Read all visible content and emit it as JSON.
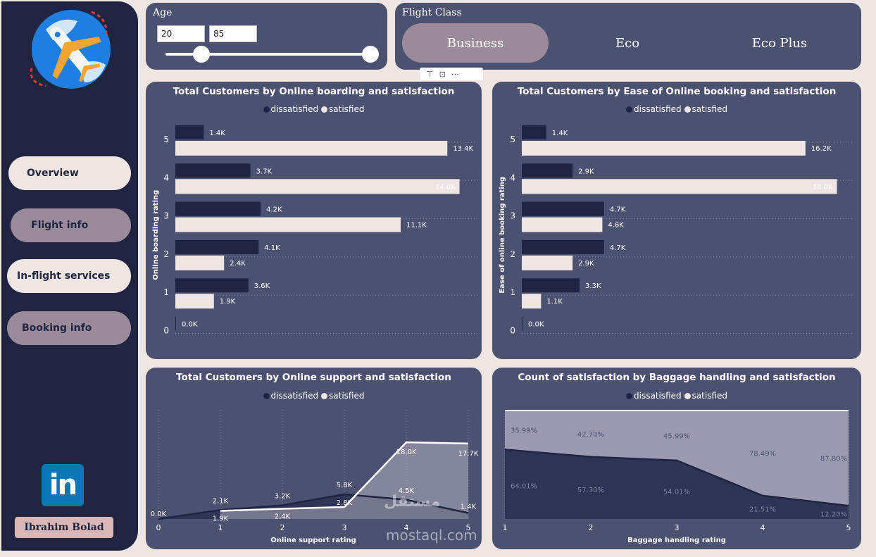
{
  "sidebar": {
    "nav": [
      {
        "label": "Overview",
        "style": "light"
      },
      {
        "label": "Flight info",
        "style": "dark"
      },
      {
        "label": "In-flight services",
        "style": "light"
      },
      {
        "label": "Booking info",
        "style": "dark"
      }
    ],
    "linkedin_label": "in",
    "author": "Ibrahim Bolad"
  },
  "age_slicer": {
    "title": "Age",
    "min": "20",
    "max": "85"
  },
  "flight_class": {
    "title": "Flight Class",
    "options": [
      "Business",
      "Eco",
      "Eco Plus"
    ],
    "selected": "Business"
  },
  "watermark": {
    "arabic": "مستقل",
    "latin": "mostaql.com"
  },
  "colors": {
    "dissatisfied": "#1f2540",
    "satisfied": "#efe6e3",
    "card": "#4b5270"
  },
  "chart_data": [
    {
      "type": "bar",
      "title": "Total Customers by Online boarding and satisfaction",
      "ylabel": "Online boarding rating",
      "categories": [
        "5",
        "4",
        "3",
        "2",
        "1",
        "0"
      ],
      "legend": [
        "dissatisfied",
        "satisfied"
      ],
      "series": [
        {
          "name": "dissatisfied",
          "values": [
            1.4,
            3.7,
            4.2,
            4.1,
            3.6,
            0.0
          ],
          "labels": [
            "1.4K",
            "3.7K",
            "4.2K",
            "4.1K",
            "3.6K",
            "0.0K"
          ]
        },
        {
          "name": "satisfied",
          "values": [
            13.4,
            14.0,
            11.1,
            2.4,
            1.9,
            null
          ],
          "labels": [
            "13.4K",
            "14.0K",
            "11.1K",
            "2.4K",
            "1.9K",
            ""
          ]
        }
      ],
      "xmax": 14.5
    },
    {
      "type": "bar",
      "title": "Total Customers by Ease of Online booking and satisfaction",
      "ylabel": "Ease of online booking rating",
      "categories": [
        "5",
        "4",
        "3",
        "2",
        "1",
        "0"
      ],
      "legend": [
        "dissatisfied",
        "satisfied"
      ],
      "series": [
        {
          "name": "dissatisfied",
          "values": [
            1.4,
            2.9,
            4.7,
            4.7,
            3.3,
            0.0
          ],
          "labels": [
            "1.4K",
            "2.9K",
            "4.7K",
            "4.7K",
            "3.3K",
            "0.0K"
          ]
        },
        {
          "name": "satisfied",
          "values": [
            16.2,
            18.0,
            4.6,
            2.9,
            1.1,
            null
          ],
          "labels": [
            "16.2K",
            "18.0K",
            "4.6K",
            "2.9K",
            "1.1K",
            ""
          ]
        }
      ],
      "xmax": 18.5
    },
    {
      "type": "area",
      "title": "Total Customers by Online support and satisfaction",
      "xlabel": "Online support rating",
      "x": [
        0,
        1,
        2,
        3,
        4,
        5
      ],
      "legend": [
        "dissatisfied",
        "satisfied"
      ],
      "series": [
        {
          "name": "dissatisfied",
          "values": [
            0.0,
            2.1,
            3.2,
            5.8,
            4.5,
            1.4
          ],
          "labels": [
            "0.0K",
            "2.1K",
            "3.2K",
            "5.8K",
            "4.5K",
            "1.4K"
          ]
        },
        {
          "name": "satisfied",
          "values": [
            null,
            1.9,
            2.4,
            2.8,
            18.0,
            17.7
          ],
          "labels": [
            "",
            "1.9K",
            "2.4K",
            "2.8K",
            "18.0K",
            "17.7K"
          ]
        }
      ],
      "ylim": [
        0,
        19.5
      ]
    },
    {
      "type": "area",
      "title": "Count of satisfaction by Baggage handling and satisfaction",
      "xlabel": "Baggage handling rating",
      "x": [
        1,
        2,
        3,
        4,
        5
      ],
      "legend": [
        "dissatisfied",
        "satisfied"
      ],
      "series": [
        {
          "name": "dissatisfied",
          "values": [
            64.01,
            57.3,
            54.01,
            21.51,
            12.2
          ],
          "labels": [
            "64.01%",
            "57.30%",
            "54.01%",
            "21.51%",
            "12.20%"
          ]
        },
        {
          "name": "satisfied",
          "values": [
            35.99,
            42.7,
            45.99,
            78.49,
            87.8
          ],
          "labels": [
            "35.99%",
            "42.70%",
            "45.99%",
            "78.49%",
            "87.80%"
          ]
        }
      ],
      "ylim": [
        0,
        100
      ]
    }
  ]
}
